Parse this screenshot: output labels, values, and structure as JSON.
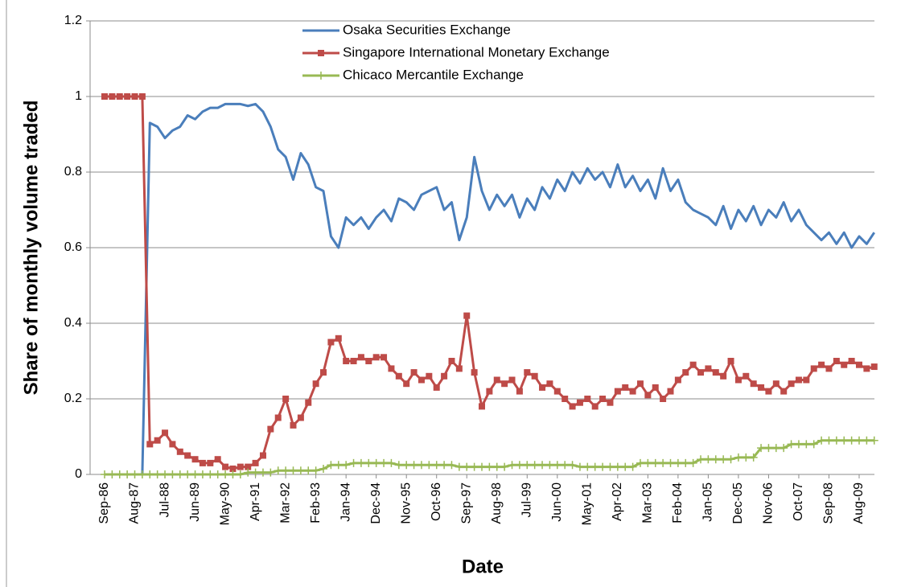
{
  "chart_data": {
    "type": "line",
    "y_label": "Share of monthly volume traded",
    "x_label": "Date",
    "categories": [
      "Sep-86",
      null,
      null,
      null,
      "Aug-87",
      null,
      null,
      null,
      "Jul-88",
      null,
      null,
      null,
      "Jun-89",
      null,
      null,
      null,
      "May-90",
      null,
      null,
      null,
      "Apr-91",
      null,
      null,
      null,
      "Mar-92",
      null,
      null,
      null,
      "Feb-93",
      null,
      null,
      null,
      "Jan-94",
      null,
      null,
      null,
      "Dec-94",
      null,
      null,
      null,
      "Nov-95",
      null,
      null,
      null,
      "Oct-96",
      null,
      null,
      null,
      "Sep-97",
      null,
      null,
      null,
      "Aug-98",
      null,
      null,
      null,
      "Jul-99",
      null,
      null,
      null,
      "Jun-00",
      null,
      null,
      null,
      "May-01",
      null,
      null,
      null,
      "Apr-02",
      null,
      null,
      null,
      "Mar-03",
      null,
      null,
      null,
      "Feb-04",
      null,
      null,
      null,
      "Jan-05",
      null,
      null,
      null,
      "Dec-05",
      null,
      null,
      null,
      "Nov-06",
      null,
      null,
      null,
      "Oct-07",
      null,
      null,
      null,
      "Sep-08",
      null,
      null,
      null,
      "Aug-09",
      null,
      null
    ],
    "series": [
      {
        "name": "Osaka Securities Exchange",
        "color": "#4a7ebb",
        "marker": "none",
        "values": [
          0,
          0,
          0,
          0,
          0,
          0,
          0.93,
          0.92,
          0.89,
          0.91,
          0.92,
          0.95,
          0.94,
          0.96,
          0.97,
          0.97,
          0.98,
          0.98,
          0.98,
          0.975,
          0.98,
          0.96,
          0.92,
          0.86,
          0.84,
          0.78,
          0.85,
          0.82,
          0.76,
          0.75,
          0.63,
          0.6,
          0.68,
          0.66,
          0.68,
          0.65,
          0.68,
          0.7,
          0.67,
          0.73,
          0.72,
          0.7,
          0.74,
          0.75,
          0.76,
          0.7,
          0.72,
          0.62,
          0.68,
          0.84,
          0.75,
          0.7,
          0.74,
          0.71,
          0.74,
          0.68,
          0.73,
          0.7,
          0.76,
          0.73,
          0.78,
          0.75,
          0.8,
          0.77,
          0.81,
          0.78,
          0.8,
          0.76,
          0.82,
          0.76,
          0.79,
          0.75,
          0.78,
          0.73,
          0.81,
          0.75,
          0.78,
          0.72,
          0.7,
          0.69,
          0.68,
          0.66,
          0.71,
          0.65,
          0.7,
          0.67,
          0.71,
          0.66,
          0.7,
          0.68,
          0.72,
          0.67,
          0.7,
          0.66,
          0.64,
          0.62,
          0.64,
          0.61,
          0.64,
          0.6,
          0.63,
          0.61,
          0.64
        ]
      },
      {
        "name": "Singapore International Monetary Exchange",
        "color": "#be4b48",
        "marker": "square",
        "values": [
          1,
          1,
          1,
          1,
          1,
          1,
          0.08,
          0.09,
          0.11,
          0.08,
          0.06,
          0.05,
          0.04,
          0.03,
          0.03,
          0.04,
          0.02,
          0.015,
          0.02,
          0.02,
          0.03,
          0.05,
          0.12,
          0.15,
          0.2,
          0.13,
          0.15,
          0.19,
          0.24,
          0.27,
          0.35,
          0.36,
          0.3,
          0.3,
          0.31,
          0.3,
          0.31,
          0.31,
          0.28,
          0.26,
          0.24,
          0.27,
          0.25,
          0.26,
          0.23,
          0.26,
          0.3,
          0.28,
          0.42,
          0.27,
          0.18,
          0.22,
          0.25,
          0.24,
          0.25,
          0.22,
          0.27,
          0.26,
          0.23,
          0.24,
          0.22,
          0.2,
          0.18,
          0.19,
          0.2,
          0.18,
          0.2,
          0.19,
          0.22,
          0.23,
          0.22,
          0.24,
          0.21,
          0.23,
          0.2,
          0.22,
          0.25,
          0.27,
          0.29,
          0.27,
          0.28,
          0.27,
          0.26,
          0.3,
          0.25,
          0.26,
          0.24,
          0.23,
          0.22,
          0.24,
          0.22,
          0.24,
          0.25,
          0.25,
          0.28,
          0.29,
          0.28,
          0.3,
          0.29,
          0.3,
          0.29,
          0.28,
          0.285
        ]
      },
      {
        "name": "Chicaco Mercantile Exchange",
        "color": "#98b954",
        "marker": "plus",
        "values": [
          0,
          0,
          0,
          0,
          0,
          0,
          0,
          0,
          0,
          0,
          0,
          0,
          0,
          0,
          0,
          0,
          0,
          0,
          0,
          0.005,
          0.005,
          0.005,
          0.005,
          0.01,
          0.01,
          0.01,
          0.01,
          0.01,
          0.01,
          0.015,
          0.025,
          0.025,
          0.025,
          0.03,
          0.03,
          0.03,
          0.03,
          0.03,
          0.03,
          0.025,
          0.025,
          0.025,
          0.025,
          0.025,
          0.025,
          0.025,
          0.025,
          0.02,
          0.02,
          0.02,
          0.02,
          0.02,
          0.02,
          0.02,
          0.025,
          0.025,
          0.025,
          0.025,
          0.025,
          0.025,
          0.025,
          0.025,
          0.025,
          0.02,
          0.02,
          0.02,
          0.02,
          0.02,
          0.02,
          0.02,
          0.02,
          0.03,
          0.03,
          0.03,
          0.03,
          0.03,
          0.03,
          0.03,
          0.03,
          0.04,
          0.04,
          0.04,
          0.04,
          0.04,
          0.045,
          0.045,
          0.045,
          0.07,
          0.07,
          0.07,
          0.07,
          0.08,
          0.08,
          0.08,
          0.08,
          0.09,
          0.09,
          0.09,
          0.09,
          0.09,
          0.09,
          0.09,
          0.09
        ]
      }
    ],
    "ylim": [
      0,
      1.2
    ],
    "yticks": [
      0,
      0.2,
      0.4,
      0.6,
      0.8,
      1,
      1.2
    ],
    "grid": true,
    "legend": "top"
  }
}
